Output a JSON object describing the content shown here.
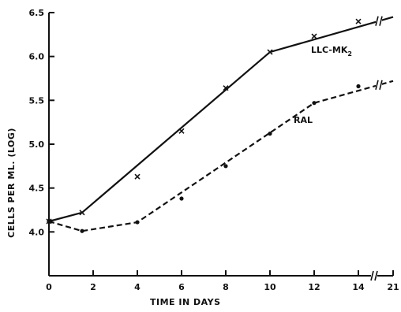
{
  "chart_data": {
    "type": "line",
    "xlabel": "TIME IN DAYS",
    "ylabel": "CELLS PER ML. (LOG)",
    "xlim": [
      0,
      21
    ],
    "ylim": [
      3.5,
      6.5
    ],
    "x_ticks": [
      "0",
      "2",
      "4",
      "6",
      "8",
      "10",
      "12",
      "14",
      "21"
    ],
    "y_ticks": [
      "4.0",
      "4.5",
      "5.0",
      "5.5",
      "6.0",
      "6.5"
    ],
    "x_break_between": [
      14,
      21
    ],
    "series": [
      {
        "name": "LLC-MK2",
        "label_main": "LLC-MK",
        "label_sub": "2",
        "line_style": "solid",
        "marker": "x",
        "points": [
          {
            "x": 0,
            "y": 4.12
          },
          {
            "x": 1.5,
            "y": 4.22
          },
          {
            "x": 4,
            "y": 4.63
          },
          {
            "x": 6,
            "y": 5.15
          },
          {
            "x": 8,
            "y": 5.64
          },
          {
            "x": 10,
            "y": 6.05
          },
          {
            "x": 12,
            "y": 6.23
          },
          {
            "x": 14,
            "y": 6.4
          }
        ],
        "line": [
          {
            "x": 0,
            "y": 4.12
          },
          {
            "x": 1.5,
            "y": 4.22
          },
          {
            "x": 10,
            "y": 6.05
          },
          {
            "x": 21,
            "y": 6.45
          }
        ]
      },
      {
        "name": "RAL",
        "line_style": "dashed",
        "marker": "dot",
        "points": [
          {
            "x": 0,
            "y": 4.12
          },
          {
            "x": 1.5,
            "y": 4.01
          },
          {
            "x": 4,
            "y": 4.11
          },
          {
            "x": 6,
            "y": 4.38
          },
          {
            "x": 8,
            "y": 4.75
          },
          {
            "x": 10,
            "y": 5.12
          },
          {
            "x": 12,
            "y": 5.47
          },
          {
            "x": 14,
            "y": 5.66
          }
        ],
        "line": [
          {
            "x": 0,
            "y": 4.12
          },
          {
            "x": 1.5,
            "y": 4.01
          },
          {
            "x": 4,
            "y": 4.11
          },
          {
            "x": 12,
            "y": 5.47
          },
          {
            "x": 21,
            "y": 5.72
          }
        ]
      }
    ]
  }
}
